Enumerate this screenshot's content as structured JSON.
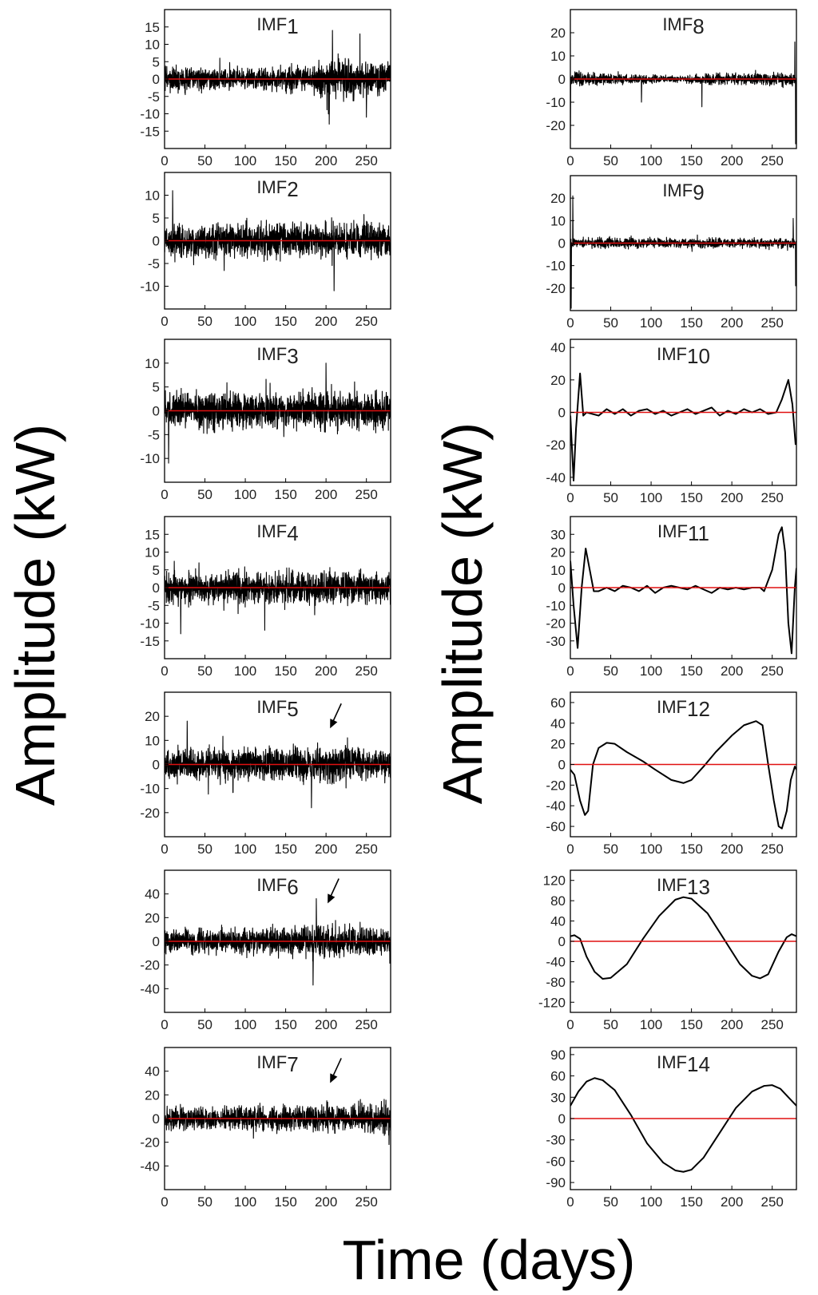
{
  "figure": {
    "xlabel": "Time (days)",
    "ylabel_left": "Amplitude (kW)",
    "ylabel_right": "Amplitude (kW)"
  },
  "chart_data": [
    {
      "type": "line",
      "title": "IMF1",
      "kind": "noise",
      "xlim": [
        0,
        280
      ],
      "xticks": [
        0,
        50,
        100,
        150,
        200,
        250
      ],
      "ylim": [
        -20,
        20
      ],
      "yticks": [
        -15,
        -10,
        -5,
        0,
        5,
        10,
        15
      ],
      "amp": 5,
      "envelope": [
        [
          0,
          1.0
        ],
        [
          100,
          0.8
        ],
        [
          180,
          1.1
        ],
        [
          210,
          1.6
        ],
        [
          280,
          1.2
        ]
      ],
      "spikes": [
        [
          208,
          14
        ],
        [
          204,
          -13
        ],
        [
          242,
          13
        ],
        [
          250,
          -11
        ]
      ],
      "seed": 1
    },
    {
      "type": "line",
      "title": "IMF2",
      "kind": "noise",
      "xlim": [
        0,
        280
      ],
      "xticks": [
        0,
        50,
        100,
        150,
        200,
        250
      ],
      "ylim": [
        -15,
        15
      ],
      "yticks": [
        -10,
        -5,
        0,
        5,
        10
      ],
      "amp": 5,
      "envelope": [
        [
          0,
          1.0
        ],
        [
          280,
          1.1
        ]
      ],
      "spikes": [
        [
          10,
          11
        ],
        [
          210,
          -11
        ]
      ],
      "seed": 2
    },
    {
      "type": "line",
      "title": "IMF3",
      "kind": "noise",
      "xlim": [
        0,
        280
      ],
      "xticks": [
        0,
        50,
        100,
        150,
        200,
        250
      ],
      "ylim": [
        -15,
        15
      ],
      "yticks": [
        -10,
        -5,
        0,
        5,
        10
      ],
      "amp": 5,
      "envelope": [
        [
          0,
          1.0
        ],
        [
          280,
          1.1
        ]
      ],
      "spikes": [
        [
          5,
          11
        ],
        [
          200,
          10
        ],
        [
          5,
          -11
        ]
      ],
      "seed": 3
    },
    {
      "type": "line",
      "title": "IMF4",
      "kind": "noise",
      "xlim": [
        0,
        280
      ],
      "xticks": [
        0,
        50,
        100,
        150,
        200,
        250
      ],
      "ylim": [
        -20,
        20
      ],
      "yticks": [
        -15,
        -10,
        -5,
        0,
        5,
        10,
        15
      ],
      "amp": 6,
      "envelope": [
        [
          0,
          1.0
        ],
        [
          280,
          1.1
        ]
      ],
      "spikes": [
        [
          124,
          12
        ],
        [
          124,
          -12
        ],
        [
          20,
          -13
        ]
      ],
      "seed": 4
    },
    {
      "type": "line",
      "title": "IMF5",
      "kind": "noise",
      "xlim": [
        0,
        280
      ],
      "xticks": [
        0,
        50,
        100,
        150,
        200,
        250
      ],
      "ylim": [
        -30,
        30
      ],
      "yticks": [
        -20,
        -10,
        0,
        10,
        20
      ],
      "amp": 9,
      "envelope": [
        [
          0,
          1.0
        ],
        [
          280,
          1.1
        ]
      ],
      "spikes": [
        [
          28,
          18
        ],
        [
          182,
          -18
        ]
      ],
      "arrow": {
        "x": 205,
        "y": 14
      },
      "seed": 5
    },
    {
      "type": "line",
      "title": "IMF6",
      "kind": "noise",
      "xlim": [
        0,
        280
      ],
      "xticks": [
        0,
        50,
        100,
        150,
        200,
        250
      ],
      "ylim": [
        -60,
        60
      ],
      "yticks": [
        -40,
        -20,
        0,
        20,
        40
      ],
      "amp": 14,
      "envelope": [
        [
          0,
          0.9
        ],
        [
          150,
          1.2
        ],
        [
          200,
          1.4
        ],
        [
          280,
          1.0
        ]
      ],
      "spikes": [
        [
          188,
          36
        ],
        [
          184,
          -37
        ]
      ],
      "arrow": {
        "x": 202,
        "y": 30
      },
      "seed": 6
    },
    {
      "type": "line",
      "title": "IMF7",
      "kind": "noise",
      "xlim": [
        0,
        280
      ],
      "xticks": [
        0,
        50,
        100,
        150,
        200,
        250
      ],
      "ylim": [
        -60,
        60
      ],
      "yticks": [
        -40,
        -20,
        0,
        20,
        40
      ],
      "amp": 13,
      "envelope": [
        [
          0,
          1.0
        ],
        [
          150,
          1.1
        ],
        [
          270,
          1.3
        ],
        [
          280,
          1.6
        ]
      ],
      "spikes": [
        [
          278,
          38
        ],
        [
          278,
          -22
        ]
      ],
      "arrow": {
        "x": 205,
        "y": 28
      },
      "seed": 7
    },
    {
      "type": "line",
      "title": "IMF8",
      "kind": "noise",
      "xlim": [
        0,
        280
      ],
      "xticks": [
        0,
        50,
        100,
        150,
        200,
        250
      ],
      "ylim": [
        -30,
        30
      ],
      "yticks": [
        -20,
        -10,
        0,
        10,
        20
      ],
      "amp": 3.5,
      "envelope": [
        [
          0,
          1.3
        ],
        [
          50,
          0.9
        ],
        [
          110,
          0.7
        ],
        [
          140,
          0.5
        ],
        [
          160,
          1.0
        ],
        [
          200,
          0.9
        ],
        [
          280,
          1.2
        ]
      ],
      "spikes": [
        [
          0,
          18
        ],
        [
          0,
          -26
        ],
        [
          88,
          11
        ],
        [
          88,
          -10
        ],
        [
          163,
          12
        ],
        [
          163,
          -12
        ],
        [
          278,
          16
        ],
        [
          279,
          -28
        ]
      ],
      "seed": 8
    },
    {
      "type": "line",
      "title": "IMF9",
      "kind": "noise",
      "xlim": [
        0,
        280
      ],
      "xticks": [
        0,
        50,
        100,
        150,
        200,
        250
      ],
      "ylim": [
        -30,
        30
      ],
      "yticks": [
        -20,
        -10,
        0,
        10,
        20
      ],
      "amp": 3,
      "envelope": [
        [
          0,
          1.0
        ],
        [
          280,
          1.0
        ]
      ],
      "spikes": [
        [
          3,
          21
        ],
        [
          1,
          -29
        ],
        [
          276,
          11
        ],
        [
          279,
          -19
        ]
      ],
      "seed": 9
    },
    {
      "type": "line",
      "title": "IMF10",
      "kind": "curve",
      "xlim": [
        0,
        280
      ],
      "xticks": [
        0,
        50,
        100,
        150,
        200,
        250
      ],
      "ylim": [
        -45,
        45
      ],
      "yticks": [
        -40,
        -20,
        0,
        20,
        40
      ],
      "points": [
        [
          0,
          -2
        ],
        [
          4,
          -42
        ],
        [
          7,
          -10
        ],
        [
          12,
          24
        ],
        [
          16,
          -2
        ],
        [
          20,
          0
        ],
        [
          35,
          -2
        ],
        [
          45,
          2
        ],
        [
          55,
          -1
        ],
        [
          65,
          2
        ],
        [
          75,
          -2
        ],
        [
          85,
          1
        ],
        [
          95,
          2
        ],
        [
          105,
          -1
        ],
        [
          115,
          1
        ],
        [
          125,
          -2
        ],
        [
          135,
          0
        ],
        [
          145,
          2
        ],
        [
          155,
          -1
        ],
        [
          165,
          1
        ],
        [
          175,
          3
        ],
        [
          185,
          -2
        ],
        [
          195,
          1
        ],
        [
          205,
          -1
        ],
        [
          215,
          2
        ],
        [
          225,
          0
        ],
        [
          235,
          2
        ],
        [
          245,
          -1
        ],
        [
          255,
          0
        ],
        [
          262,
          8
        ],
        [
          270,
          20
        ],
        [
          275,
          5
        ],
        [
          279,
          -20
        ]
      ]
    },
    {
      "type": "line",
      "title": "IMF11",
      "kind": "curve",
      "xlim": [
        0,
        280
      ],
      "xticks": [
        0,
        50,
        100,
        150,
        200,
        250
      ],
      "ylim": [
        -40,
        40
      ],
      "yticks": [
        -30,
        -20,
        -10,
        0,
        10,
        20,
        30
      ],
      "points": [
        [
          0,
          15
        ],
        [
          4,
          -10
        ],
        [
          9,
          -34
        ],
        [
          14,
          0
        ],
        [
          19,
          22
        ],
        [
          24,
          10
        ],
        [
          29,
          -2
        ],
        [
          35,
          -2
        ],
        [
          45,
          0
        ],
        [
          55,
          -2
        ],
        [
          65,
          1
        ],
        [
          75,
          0
        ],
        [
          85,
          -2
        ],
        [
          95,
          1
        ],
        [
          105,
          -3
        ],
        [
          115,
          0
        ],
        [
          125,
          1
        ],
        [
          135,
          0
        ],
        [
          145,
          -1
        ],
        [
          155,
          1
        ],
        [
          165,
          -1
        ],
        [
          175,
          -3
        ],
        [
          185,
          0
        ],
        [
          195,
          -1
        ],
        [
          205,
          0
        ],
        [
          215,
          -1
        ],
        [
          225,
          0
        ],
        [
          235,
          0
        ],
        [
          240,
          -2
        ],
        [
          250,
          10
        ],
        [
          258,
          30
        ],
        [
          262,
          34
        ],
        [
          266,
          20
        ],
        [
          270,
          -20
        ],
        [
          274,
          -37
        ],
        [
          278,
          0
        ],
        [
          280,
          11
        ]
      ]
    },
    {
      "type": "line",
      "title": "IMF12",
      "kind": "curve",
      "xlim": [
        0,
        280
      ],
      "xticks": [
        0,
        50,
        100,
        150,
        200,
        250
      ],
      "ylim": [
        -70,
        70
      ],
      "yticks": [
        -60,
        -40,
        -20,
        0,
        20,
        40,
        60
      ],
      "points": [
        [
          0,
          -5
        ],
        [
          5,
          -10
        ],
        [
          12,
          -35
        ],
        [
          18,
          -49
        ],
        [
          22,
          -45
        ],
        [
          28,
          0
        ],
        [
          35,
          16
        ],
        [
          45,
          21
        ],
        [
          55,
          20
        ],
        [
          70,
          12
        ],
        [
          90,
          3
        ],
        [
          105,
          -5
        ],
        [
          125,
          -15
        ],
        [
          140,
          -18
        ],
        [
          150,
          -15
        ],
        [
          165,
          -2
        ],
        [
          180,
          12
        ],
        [
          200,
          28
        ],
        [
          215,
          38
        ],
        [
          230,
          42
        ],
        [
          238,
          38
        ],
        [
          245,
          0
        ],
        [
          252,
          -35
        ],
        [
          258,
          -60
        ],
        [
          262,
          -62
        ],
        [
          268,
          -45
        ],
        [
          273,
          -15
        ],
        [
          278,
          -2
        ],
        [
          280,
          -5
        ]
      ]
    },
    {
      "type": "line",
      "title": "IMF13",
      "kind": "curve",
      "xlim": [
        0,
        280
      ],
      "xticks": [
        0,
        50,
        100,
        150,
        200,
        250
      ],
      "ylim": [
        -140,
        140
      ],
      "yticks": [
        -120,
        -80,
        -40,
        0,
        40,
        80,
        120
      ],
      "points": [
        [
          0,
          10
        ],
        [
          5,
          12
        ],
        [
          12,
          5
        ],
        [
          20,
          -30
        ],
        [
          30,
          -60
        ],
        [
          40,
          -74
        ],
        [
          50,
          -72
        ],
        [
          70,
          -45
        ],
        [
          90,
          5
        ],
        [
          110,
          50
        ],
        [
          130,
          82
        ],
        [
          140,
          87
        ],
        [
          150,
          84
        ],
        [
          170,
          55
        ],
        [
          190,
          5
        ],
        [
          210,
          -45
        ],
        [
          225,
          -68
        ],
        [
          235,
          -73
        ],
        [
          245,
          -65
        ],
        [
          258,
          -20
        ],
        [
          268,
          8
        ],
        [
          274,
          14
        ],
        [
          280,
          10
        ]
      ]
    },
    {
      "type": "line",
      "title": "IMF14",
      "kind": "curve",
      "xlim": [
        0,
        280
      ],
      "xticks": [
        0,
        50,
        100,
        150,
        200,
        250
      ],
      "ylim": [
        -100,
        100
      ],
      "yticks": [
        -90,
        -60,
        -30,
        0,
        30,
        60,
        90
      ],
      "points": [
        [
          0,
          18
        ],
        [
          10,
          38
        ],
        [
          20,
          52
        ],
        [
          30,
          57
        ],
        [
          40,
          54
        ],
        [
          55,
          40
        ],
        [
          75,
          5
        ],
        [
          95,
          -35
        ],
        [
          115,
          -62
        ],
        [
          130,
          -73
        ],
        [
          140,
          -75
        ],
        [
          150,
          -72
        ],
        [
          165,
          -55
        ],
        [
          185,
          -20
        ],
        [
          205,
          15
        ],
        [
          225,
          38
        ],
        [
          240,
          46
        ],
        [
          250,
          47
        ],
        [
          260,
          42
        ],
        [
          270,
          30
        ],
        [
          280,
          18
        ]
      ]
    }
  ]
}
